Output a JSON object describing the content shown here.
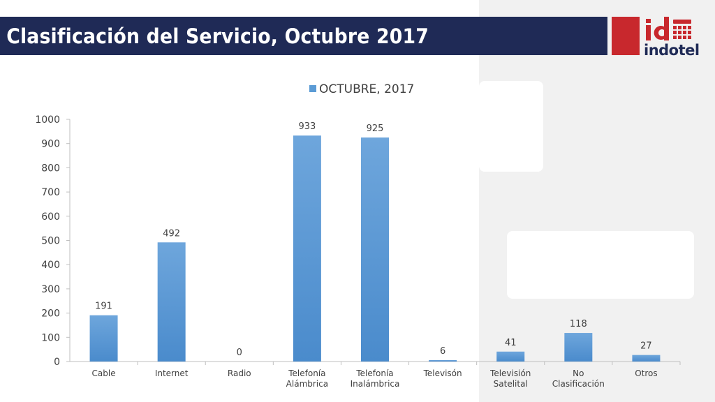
{
  "slide": {
    "title": "Clasificación del Servicio, Octubre 2017",
    "logo_text": "indotel",
    "colors": {
      "title_bar": "#1f2a56",
      "logo_red": "#c8282d",
      "bar": "#5b9bd5"
    }
  },
  "chart_data": {
    "type": "bar",
    "categories": [
      "Cable",
      "Internet",
      "Radio",
      "Telefonía Alámbrica",
      "Telefonía Inalámbrica",
      "Televisón",
      "Televisión Satelital",
      "No Clasificación",
      "Otros"
    ],
    "series": [
      {
        "name": "OCTUBRE, 2017",
        "values": [
          191,
          492,
          0,
          933,
          925,
          6,
          41,
          118,
          27
        ]
      }
    ],
    "ylim": [
      0,
      1000
    ],
    "yticks": [
      0,
      100,
      200,
      300,
      400,
      500,
      600,
      700,
      800,
      900,
      1000
    ],
    "legend_position": "top",
    "data_labels": true,
    "grid": false
  }
}
